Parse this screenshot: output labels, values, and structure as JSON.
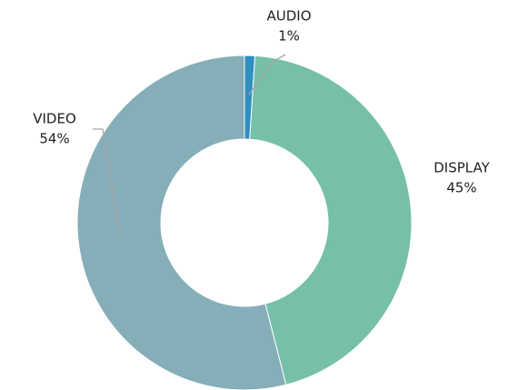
{
  "chart_data": {
    "type": "donut",
    "categories": [
      "AUDIO",
      "DISPLAY",
      "VIDEO"
    ],
    "values": [
      1,
      45,
      54
    ],
    "value_labels": [
      "1%",
      "45%",
      "54%"
    ],
    "colors": [
      "#2e8fc0",
      "#76bfa8",
      "#86aeb8"
    ]
  }
}
